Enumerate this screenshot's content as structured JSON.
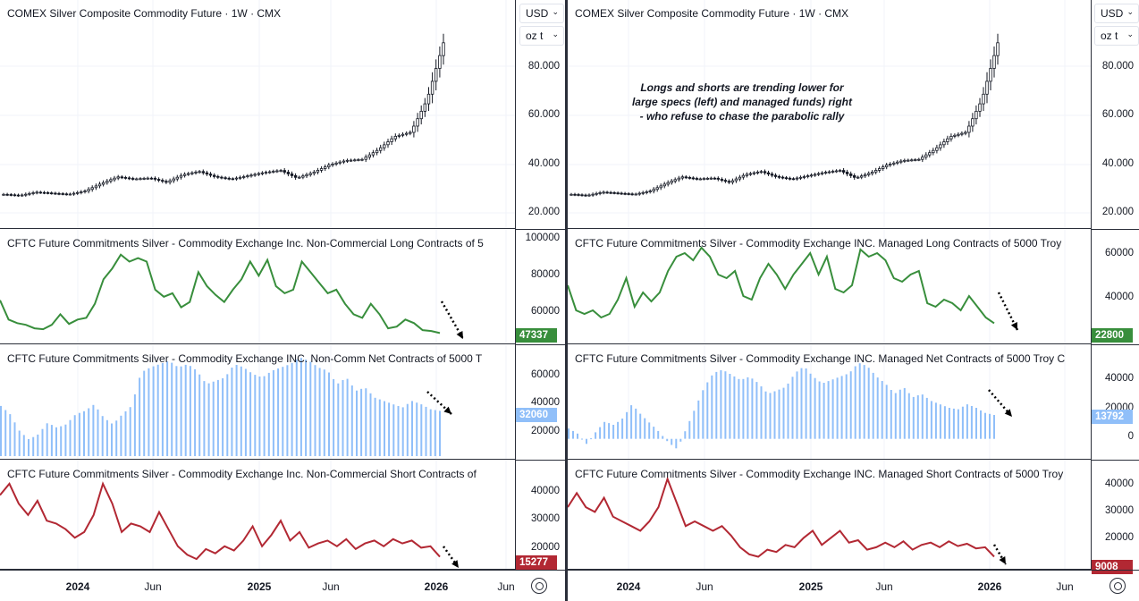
{
  "colors": {
    "long": "#388e3c",
    "net": "#90bff9",
    "short": "#b22833",
    "price": "#131722",
    "axis": "#2a2e39"
  },
  "toolbar": {
    "currency": "USD",
    "unit": "oz t"
  },
  "x_ticks": [
    "2024",
    "Jun",
    "2025",
    "Jun",
    "2026",
    "Jun"
  ],
  "annotation": [
    "Longs and shorts are trending lower for",
    "large specs (left) and managed funds) right",
    "- who refuse to chase the parabolic rally"
  ],
  "panels": {
    "left": {
      "price_title": "COMEX Silver Composite Commodity Future · 1W · CMX",
      "long_title": "CFTC Future Commitments Silver - Commodity Exchange Inc. Non-Commercial Long Contracts of 5",
      "net_title": "CFTC Future Commitments Silver - Commodity Exchange INC. Non-Comm Net Contracts of 5000 T",
      "short_title": "CFTC Future Commitments Silver - Commodity Exchange Inc. Non-Commercial Short Contracts of",
      "price_ticks": [
        "80.000",
        "60.000",
        "40.000",
        "20.000"
      ],
      "long_ticks": [
        "100000",
        "80000",
        "60000"
      ],
      "net_ticks": [
        "60000",
        "40000",
        "20000"
      ],
      "short_ticks": [
        "40000",
        "30000",
        "20000"
      ],
      "long_last": "47337",
      "net_last": "32060",
      "short_last": "15277"
    },
    "right": {
      "price_title": "COMEX Silver Composite Commodity Future · 1W · CMX",
      "long_title": "CFTC Future Commitments Silver - Commodity Exchange INC. Managed Long Contracts of 5000 Troy",
      "net_title": "CFTC Future Commitments Silver - Commodity Exchange INC. Managed Net Contracts of 5000 Troy C",
      "short_title": "CFTC Future Commitments Silver - Commodity Exchange INC. Managed Short Contracts of 5000 Troy",
      "price_ticks": [
        "80.000",
        "60.000",
        "40.000",
        "20.000"
      ],
      "long_ticks": [
        "60000",
        "40000"
      ],
      "net_ticks": [
        "40000",
        "20000",
        "0"
      ],
      "short_ticks": [
        "40000",
        "30000",
        "20000",
        "10000"
      ],
      "long_last": "22800",
      "net_last": "13792",
      "short_last": "9008"
    }
  },
  "chart_data": [
    {
      "type": "line",
      "title": "COMEX Silver Composite Commodity Future · 1W · CMX",
      "ylim": [
        14,
        96
      ],
      "x": [
        "2023-10",
        "2023-11",
        "2023-12",
        "2024-01",
        "2024-02",
        "2024-03",
        "2024-04",
        "2024-05",
        "2024-06",
        "2024-07",
        "2024-08",
        "2024-09",
        "2024-10",
        "2024-11",
        "2024-12",
        "2025-01",
        "2025-02",
        "2025-03",
        "2025-04",
        "2025-05",
        "2025-06",
        "2025-07",
        "2025-08",
        "2025-09",
        "2025-10",
        "2025-11",
        "2025-12",
        "2026-01"
      ],
      "values": [
        22.5,
        22.0,
        23.5,
        23.0,
        22.5,
        24.0,
        27.5,
        30.5,
        29.5,
        30.0,
        28.0,
        31.5,
        33.0,
        30.5,
        29.5,
        31.0,
        32.5,
        33.5,
        30.0,
        32.5,
        36.0,
        38.0,
        38.5,
        43.0,
        49.0,
        51.0,
        66.0,
        92.0
      ]
    },
    {
      "type": "line",
      "title": "CFTC Future Commitments Silver - Commodity Exchange Inc. Non-Commercial Long Contracts of 5",
      "ylim": [
        46000,
        101000
      ],
      "values": [
        66000,
        55000,
        53000,
        52000,
        50000,
        49500,
        52000,
        58000,
        52500,
        55000,
        56000,
        64000,
        78000,
        84000,
        92000,
        88000,
        90000,
        88000,
        72000,
        68000,
        70000,
        62000,
        65000,
        82000,
        74000,
        69000,
        65000,
        72000,
        78000,
        88000,
        80000,
        89000,
        74000,
        70000,
        72000,
        88000,
        82000,
        76000,
        70000,
        72000,
        64000,
        58000,
        56000,
        64000,
        58000,
        50000,
        51000,
        55000,
        53000,
        49000,
        48500,
        47337
      ]
    },
    {
      "type": "bar",
      "title": "CFTC Future Commitments Silver - Commodity Exchange INC. Non-Comm Net Contracts of 5000 T",
      "ylim": [
        5000,
        67000
      ],
      "values": [
        35000,
        30000,
        20000,
        15000,
        18000,
        25000,
        22000,
        24000,
        30000,
        32000,
        36000,
        28000,
        24000,
        30000,
        35000,
        55000,
        58000,
        60000,
        62000,
        58000,
        60000,
        56000,
        48000,
        50000,
        52000,
        60000,
        58000,
        54000,
        52000,
        56000,
        58000,
        60000,
        64000,
        62000,
        58000,
        56000,
        48000,
        52000,
        44000,
        46000,
        40000,
        38000,
        36000,
        34000,
        38000,
        36000,
        33000,
        32060
      ]
    },
    {
      "type": "bar",
      "title": "CFTC Future Commitments Silver - Commodity Exchange INC. Managed Net Contracts of 5000 Troy C",
      "ylim": [
        -10000,
        50000
      ],
      "values": [
        6000,
        3000,
        -3000,
        4000,
        10000,
        8000,
        12000,
        20000,
        14000,
        9000,
        4000,
        -2000,
        -6000,
        6000,
        18000,
        30000,
        38000,
        40000,
        37000,
        34000,
        36000,
        32000,
        26000,
        28000,
        30000,
        38000,
        42000,
        36000,
        32000,
        34000,
        36000,
        38000,
        44000,
        42000,
        36000,
        32000,
        26000,
        30000,
        24000,
        26000,
        22000,
        20000,
        18000,
        17000,
        20000,
        18000,
        15000,
        13792
      ]
    },
    {
      "type": "line",
      "title": "CFTC Future Commitments Silver - Commodity Exchange Inc. Non-Commercial Short Contracts of",
      "ylim": [
        12000,
        46000
      ],
      "values": [
        37000,
        41000,
        34000,
        30000,
        35000,
        28000,
        27000,
        25000,
        22000,
        24000,
        30000,
        41000,
        34000,
        24000,
        27000,
        26000,
        24000,
        31000,
        25000,
        19000,
        16000,
        14500,
        18000,
        16500,
        19000,
        17500,
        21000,
        26000,
        19000,
        23000,
        28000,
        21000,
        24000,
        18500,
        20000,
        21000,
        19000,
        21500,
        18000,
        20000,
        21000,
        19000,
        21500,
        20000,
        21000,
        18500,
        19000,
        15277
      ]
    },
    {
      "type": "line",
      "title": "CFTC Future Commitments Silver - Commodity Exchange INC. Managed Long Contracts of 5000 Troy",
      "ylim": [
        16000,
        70000
      ],
      "values": [
        44000,
        30000,
        28000,
        30000,
        26000,
        28000,
        36000,
        48000,
        32000,
        40000,
        35000,
        40000,
        52000,
        60000,
        62000,
        58000,
        65000,
        60000,
        50000,
        48000,
        52000,
        38000,
        36000,
        48000,
        56000,
        50000,
        42000,
        50000,
        56000,
        62000,
        50000,
        60000,
        42000,
        40000,
        44000,
        64000,
        60000,
        62000,
        58000,
        48000,
        46000,
        50000,
        52000,
        34000,
        32000,
        36000,
        34000,
        30000,
        38000,
        32000,
        26000,
        22800
      ]
    },
    {
      "type": "line",
      "title": "CFTC Future Commitments Silver - Commodity Exchange INC. Managed Short Contracts of 5000 Troy",
      "ylim": [
        5000,
        46000
      ],
      "values": [
        30000,
        36000,
        30000,
        28000,
        34000,
        26000,
        24000,
        22000,
        20000,
        24000,
        30000,
        42000,
        32000,
        22000,
        24000,
        22000,
        20000,
        22000,
        18000,
        13000,
        10000,
        9000,
        12000,
        11000,
        14000,
        13000,
        17000,
        20000,
        14000,
        17000,
        20000,
        15000,
        16000,
        12000,
        13000,
        15000,
        13000,
        15500,
        12000,
        14000,
        15000,
        13000,
        15500,
        13500,
        14500,
        12500,
        13000,
        9008
      ]
    }
  ]
}
